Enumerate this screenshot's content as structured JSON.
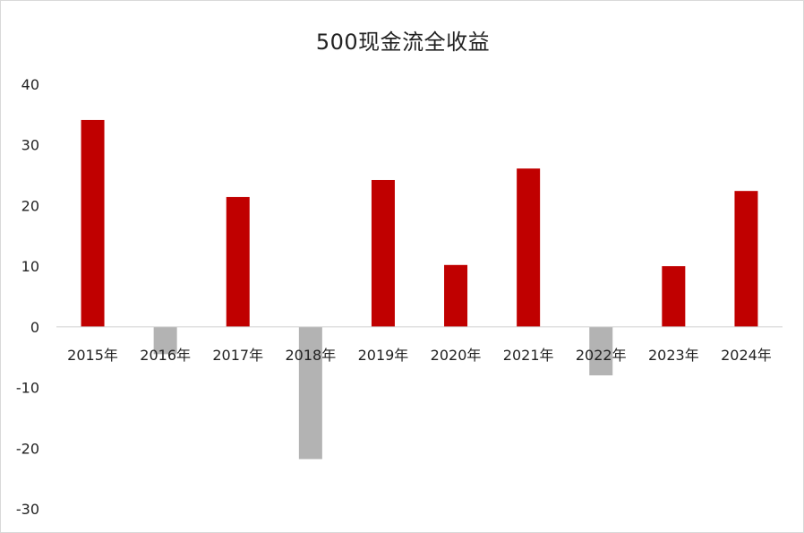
{
  "chart_data": {
    "type": "bar",
    "title": "500现金流全收益",
    "categories": [
      "2015年",
      "2016年",
      "2017年",
      "2018年",
      "2019年",
      "2020年",
      "2021年",
      "2022年",
      "2023年",
      "2024年"
    ],
    "values": [
      34.1,
      -4.5,
      21.4,
      -21.8,
      24.2,
      10.2,
      26.1,
      -8.0,
      10.0,
      22.4
    ],
    "ylim": [
      -30,
      40
    ],
    "yticks": [
      40,
      30,
      20,
      10,
      0,
      -10,
      -20,
      -30
    ],
    "grid": false,
    "legend": "none",
    "colors": {
      "positive": "#c00000",
      "negative": "#b3b3b3"
    }
  }
}
